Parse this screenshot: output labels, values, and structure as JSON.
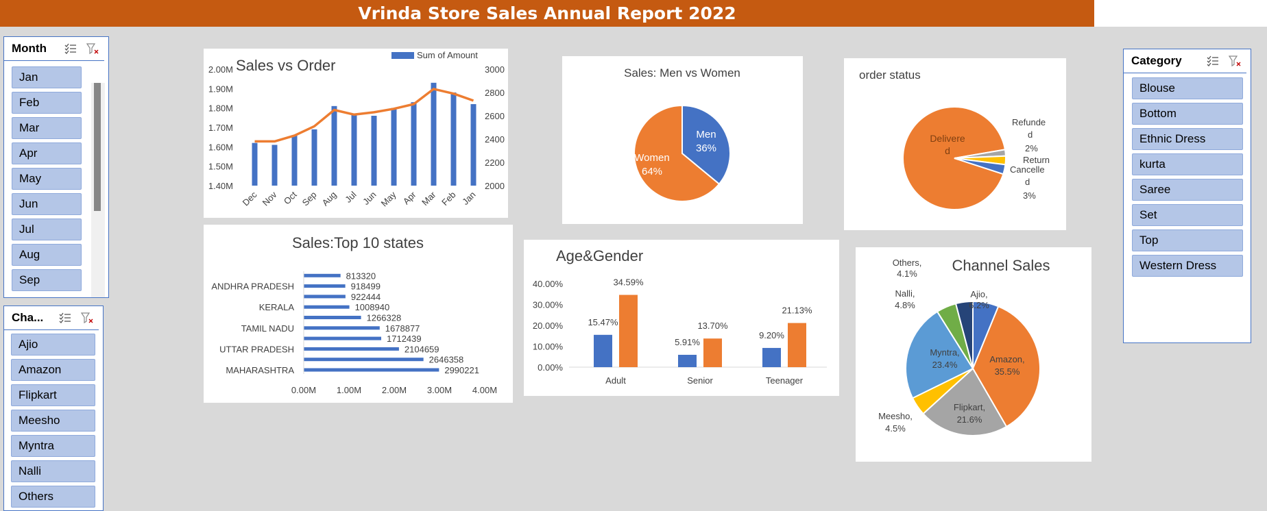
{
  "header": {
    "title": "Vrinda Store Sales Annual Report 2022"
  },
  "slicers": {
    "month": {
      "title": "Month",
      "items": [
        "Jan",
        "Feb",
        "Mar",
        "Apr",
        "May",
        "Jun",
        "Jul",
        "Aug",
        "Sep"
      ]
    },
    "channel": {
      "title": "Cha...",
      "items": [
        "Ajio",
        "Amazon",
        "Flipkart",
        "Meesho",
        "Myntra",
        "Nalli",
        "Others"
      ]
    },
    "category": {
      "title": "Category",
      "items": [
        "Blouse",
        "Bottom",
        "Ethnic Dress",
        "kurta",
        "Saree",
        "Set",
        "Top",
        "Western Dress"
      ]
    }
  },
  "icons": {
    "multi_select": "multi-select-icon",
    "clear_filter": "clear-filter-icon"
  },
  "colors": {
    "blue": "#4472c4",
    "orange": "#ed7d31",
    "gray": "#a5a5a5",
    "yellow": "#ffc000",
    "lightblue": "#5b9bd5",
    "green": "#70ad47",
    "navy": "#264478",
    "banner": "#c55a11"
  },
  "chart_data": [
    {
      "id": "sales_vs_order",
      "type": "bar",
      "title": "Sales vs Order",
      "legend": [
        "Sum of Amount"
      ],
      "legend_position": "top-right",
      "categories": [
        "Dec",
        "Nov",
        "Oct",
        "Sep",
        "Aug",
        "Jul",
        "Jun",
        "May",
        "Apr",
        "Mar",
        "Feb",
        "Jan"
      ],
      "series": [
        {
          "name": "Sum of Amount",
          "type": "bar",
          "axis": "left",
          "values": [
            1620000,
            1610000,
            1660000,
            1690000,
            1810000,
            1770000,
            1760000,
            1800000,
            1830000,
            1930000,
            1880000,
            1820000
          ]
        },
        {
          "type": "line",
          "axis": "right",
          "values": [
            2380,
            2380,
            2430,
            2510,
            2650,
            2610,
            2630,
            2660,
            2700,
            2830,
            2790,
            2730
          ]
        }
      ],
      "ylim_left": [
        1400000,
        2000000
      ],
      "yticks_left": [
        "1.40M",
        "1.50M",
        "1.60M",
        "1.70M",
        "1.80M",
        "1.90M",
        "2.00M"
      ],
      "ylim_right": [
        2000,
        3000
      ],
      "yticks_right": [
        "2000",
        "2200",
        "2400",
        "2600",
        "2800",
        "3000"
      ]
    },
    {
      "id": "top_states",
      "type": "bar",
      "orientation": "horizontal",
      "title": "Sales:Top 10 states",
      "values": [
        2990221,
        2646358,
        2104659,
        1712439,
        1678877,
        1266328,
        1008940,
        922444,
        918499,
        813320
      ],
      "value_labels": [
        "2990221",
        "2646358",
        "2104659",
        "1712439",
        "1678877",
        "1266328",
        "1008940",
        "922444",
        "918499",
        "813320"
      ],
      "category_labels": [
        "MAHARASHTRA",
        "",
        "UTTAR PRADESH",
        "",
        "TAMIL NADU",
        "",
        "KERALA",
        "",
        "ANDHRA PRADESH",
        ""
      ],
      "xlim": [
        0,
        4000000
      ],
      "xticks": [
        "0.00M",
        "1.00M",
        "2.00M",
        "3.00M",
        "4.00M"
      ]
    },
    {
      "id": "men_women",
      "type": "pie",
      "title": "Sales: Men vs Women",
      "slices": [
        {
          "label": "Men",
          "value": 36,
          "pct": "36%"
        },
        {
          "label": "Women",
          "value": 64,
          "pct": "64%"
        }
      ]
    },
    {
      "id": "order_status",
      "type": "pie",
      "title": "order status",
      "slices": [
        {
          "label": "Delivere d",
          "value": 92.3,
          "pct": ""
        },
        {
          "label": "Refunde d",
          "value": 2,
          "pct": "2%"
        },
        {
          "label": "Return",
          "value": 2.7,
          "pct": ""
        },
        {
          "label": "Cancelle d",
          "value": 3,
          "pct": "3%"
        }
      ]
    },
    {
      "id": "age_gender",
      "type": "bar",
      "title": "Age&Gender",
      "categories": [
        "Adult",
        "Senior",
        "Teenager"
      ],
      "series": [
        {
          "values": [
            15.47,
            5.91,
            9.2
          ],
          "labels": [
            "15.47%",
            "5.91%",
            "9.20%"
          ]
        },
        {
          "values": [
            34.59,
            13.7,
            21.13
          ],
          "labels": [
            "34.59%",
            "13.70%",
            "21.13%"
          ]
        }
      ],
      "ylim": [
        0,
        40
      ],
      "yticks": [
        "0.00%",
        "10.00%",
        "20.00%",
        "30.00%",
        "40.00%"
      ]
    },
    {
      "id": "channel_sales",
      "type": "pie",
      "title": "Channel Sales",
      "slices": [
        {
          "label": "Ajio,",
          "value": 6.2,
          "pct": "6.2%"
        },
        {
          "label": "Amazon,",
          "value": 35.5,
          "pct": "35.5%"
        },
        {
          "label": "Flipkart,",
          "value": 21.6,
          "pct": "21.6%"
        },
        {
          "label": "Meesho,",
          "value": 4.5,
          "pct": "4.5%"
        },
        {
          "label": "Myntra,",
          "value": 23.4,
          "pct": "23.4%"
        },
        {
          "label": "Nalli,",
          "value": 4.8,
          "pct": "4.8%"
        },
        {
          "label": "Others,",
          "value": 4.1,
          "pct": "4.1%"
        }
      ]
    }
  ]
}
